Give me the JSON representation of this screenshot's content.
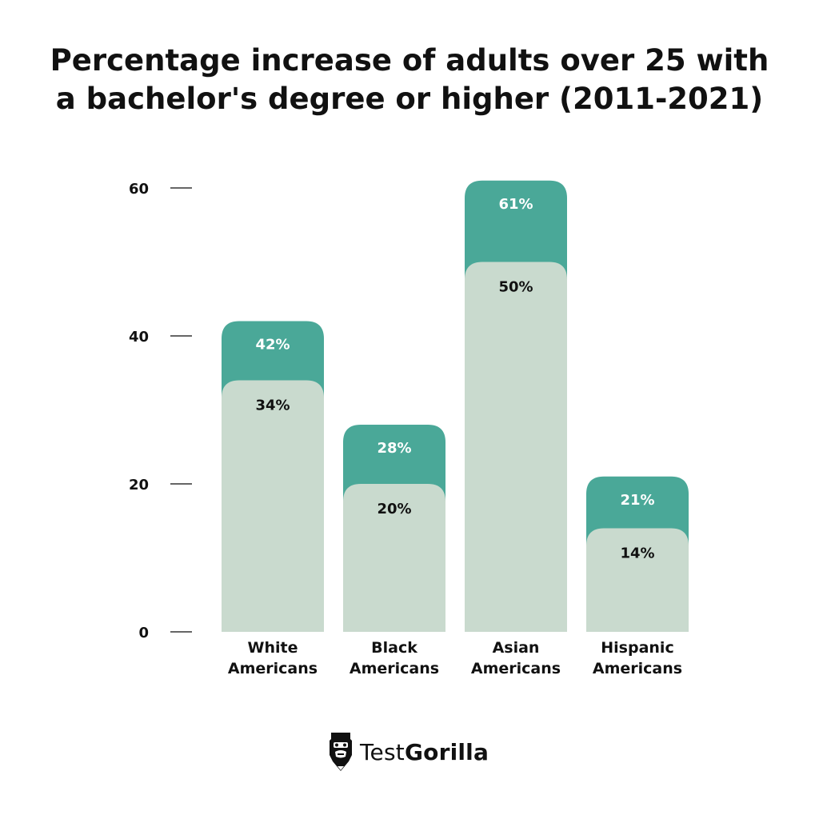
{
  "title": {
    "line1": "Percentage increase of adults over 25 with",
    "line2": "a bachelor's degree or higher (2011-2021)"
  },
  "colors": {
    "top_segment": "#4aa898",
    "bottom_segment": "#c9dace",
    "text_dark": "#111111",
    "tick": "#333333"
  },
  "chart_data": {
    "type": "bar",
    "title": "Percentage increase of adults over 25 with a bachelor's degree or higher (2011-2021)",
    "categories": [
      [
        "White",
        "Americans"
      ],
      [
        "Black",
        "Americans"
      ],
      [
        "Asian",
        "Americans"
      ],
      [
        "Hispanic",
        "Americans"
      ]
    ],
    "series": [
      {
        "values": [
          34,
          20,
          50,
          14
        ],
        "labels": [
          "34%",
          "20%",
          "50%",
          "14%"
        ]
      },
      {
        "values": [
          42,
          28,
          61,
          21
        ],
        "labels": [
          "42%",
          "28%",
          "61%",
          "21%"
        ]
      }
    ],
    "yticks": [
      0,
      20,
      40,
      60
    ],
    "ylim": [
      0,
      60
    ],
    "grid": false,
    "legend": "none"
  },
  "logo": {
    "text_light": "Test",
    "text_bold": "Gorilla",
    "icon": "gorilla-icon"
  }
}
